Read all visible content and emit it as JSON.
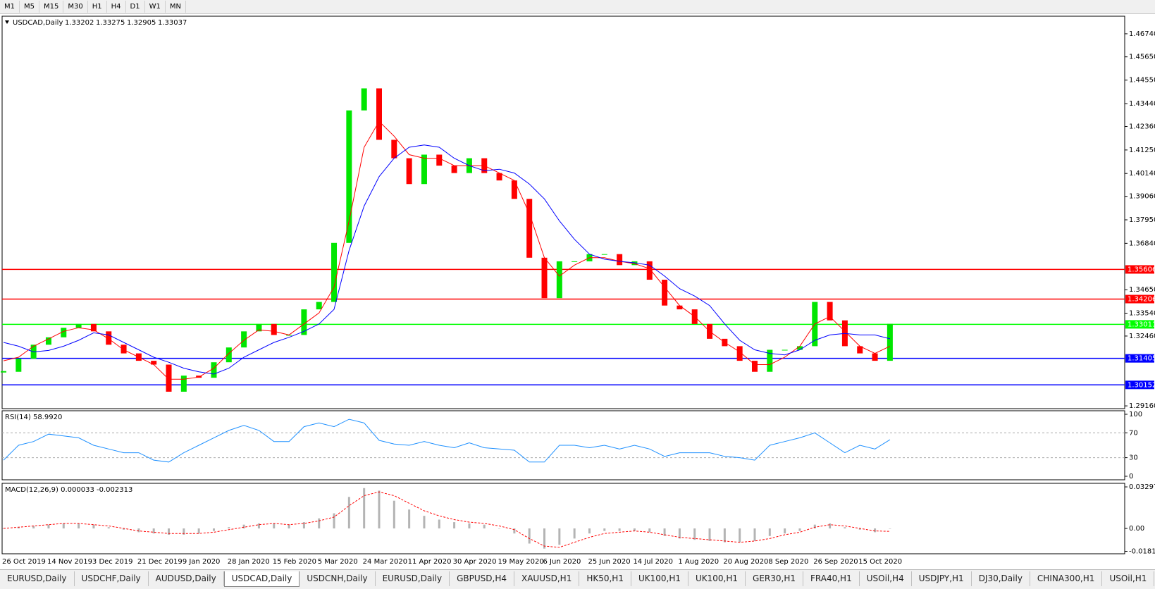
{
  "toolbar": {
    "timeframes": [
      "M1",
      "M5",
      "M15",
      "M30",
      "H1",
      "H4",
      "D1",
      "W1",
      "MN"
    ]
  },
  "tabs": [
    "EURUSD,Daily",
    "USDCHF,Daily",
    "AUDUSD,Daily",
    "USDCAD,Daily",
    "USDCNH,Daily",
    "EURUSD,Daily",
    "GBPUSD,H4",
    "XAUUSD,H1",
    "HK50,H1",
    "UK100,H1",
    "UK100,H1",
    "GER30,H1",
    "FRA40,H1",
    "USOil,H4",
    "USDJPY,H1",
    "DJ30,Daily",
    "CHINA300,H1",
    "USOil,H1"
  ],
  "active_tab": 3,
  "chart_data": [
    {
      "type": "candlestick",
      "title": "USDCAD,Daily",
      "ohlc": [
        1.33202,
        1.33275,
        1.32905,
        1.33037
      ],
      "categories": [
        "26 Oct 2019",
        null,
        null,
        "14 Nov 2019",
        null,
        null,
        "3 Dec 2019",
        null,
        null,
        "21 Dec 2019",
        null,
        null,
        "9 Jan 2020",
        null,
        null,
        "28 Jan 2020",
        null,
        null,
        "15 Feb 2020",
        null,
        null,
        "5 Mar 2020",
        null,
        null,
        "24 Mar 2020",
        null,
        null,
        "11 Apr 2020",
        null,
        null,
        "30 Apr 2020",
        null,
        null,
        "19 May 2020",
        null,
        null,
        "6 Jun 2020",
        null,
        null,
        "25 Jun 2020",
        null,
        null,
        "14 Jul 2020",
        null,
        null,
        "1 Aug 2020",
        null,
        null,
        "20 Aug 2020",
        null,
        null,
        "8 Sep 2020",
        null,
        null,
        "26 Sep 2020",
        null,
        null,
        "15 Oct 2020",
        null,
        null
      ],
      "close": [
        1.3077,
        1.3139,
        1.3205,
        1.324,
        1.3285,
        1.3303,
        1.3268,
        1.3205,
        1.3164,
        1.3129,
        1.3111,
        1.2983,
        1.3059,
        1.3049,
        1.3122,
        1.3192,
        1.3268,
        1.3303,
        1.3251,
        1.3251,
        1.3372,
        1.3407,
        1.3686,
        1.4312,
        1.4416,
        1.4173,
        1.4086,
        1.3964,
        1.4103,
        1.4051,
        1.4016,
        1.4086,
        1.4016,
        1.3981,
        1.3894,
        1.3616,
        1.3425,
        1.3599,
        1.3599,
        1.3633,
        1.3633,
        1.3581,
        1.3599,
        1.3512,
        1.339,
        1.3372,
        1.3303,
        1.3233,
        1.3198,
        1.3129,
        1.3077,
        1.3181,
        1.3181,
        1.3198,
        1.3407,
        1.332,
        1.3198,
        1.3164,
        1.3129,
        1.33037
      ],
      "up_color": "#00e600",
      "down_color": "#ff0000",
      "ma_lines": [
        {
          "color": "#ff0000",
          "values": [
            1.3129,
            1.3146,
            1.3198,
            1.3233,
            1.3268,
            1.3285,
            1.3275,
            1.3233,
            1.3181,
            1.3146,
            1.3111,
            1.3042,
            1.3042,
            1.3052,
            1.3094,
            1.3164,
            1.3226,
            1.3275,
            1.3268,
            1.3251,
            1.3303,
            1.3355,
            1.3477,
            1.379,
            1.4138,
            1.426,
            1.419,
            1.4103,
            1.4086,
            1.4086,
            1.4051,
            1.4051,
            1.4051,
            1.4016,
            1.3981,
            1.3825,
            1.3616,
            1.3529,
            1.3581,
            1.3616,
            1.3616,
            1.3599,
            1.3588,
            1.3564,
            1.3477,
            1.339,
            1.3338,
            1.3268,
            1.3216,
            1.3171,
            1.3111,
            1.3111,
            1.3146,
            1.3198,
            1.3303,
            1.3338,
            1.3268,
            1.3198,
            1.3164,
            1.3198
          ]
        },
        {
          "color": "#0000ff",
          "values": [
            1.3216,
            1.3198,
            1.3171,
            1.3178,
            1.3198,
            1.3226,
            1.3261,
            1.3251,
            1.3216,
            1.3181,
            1.3146,
            1.3122,
            1.3094,
            1.3077,
            1.3066,
            1.3094,
            1.3146,
            1.3181,
            1.3216,
            1.324,
            1.3268,
            1.3303,
            1.3372,
            1.3651,
            1.386,
            1.3999,
            1.4086,
            1.4138,
            1.4149,
            1.4138,
            1.4086,
            1.4051,
            1.4027,
            1.4034,
            1.4016,
            1.3964,
            1.3894,
            1.379,
            1.3703,
            1.3633,
            1.3609,
            1.3599,
            1.3592,
            1.3581,
            1.3529,
            1.347,
            1.3435,
            1.339,
            1.3303,
            1.3226,
            1.3181,
            1.3164,
            1.3157,
            1.3181,
            1.3226,
            1.3251,
            1.3258,
            1.3251,
            1.3251,
            1.3233
          ]
        }
      ],
      "levels": [
        {
          "value": 1.35606,
          "color": "#ff0000"
        },
        {
          "value": 1.34206,
          "color": "#ff0000"
        },
        {
          "value": 1.33011,
          "color": "#00ff00"
        },
        {
          "value": 1.31405,
          "color": "#0000ff"
        },
        {
          "value": 1.30152,
          "color": "#0000ff"
        }
      ],
      "ylim": [
        1.2903,
        1.4757
      ],
      "yticks": [
        {
          "value": 1.2916,
          "label": "1.29160"
        },
        {
          "value": 1.3246,
          "label": "1.32460"
        },
        {
          "value": 1.3354,
          "label": "1.33540"
        },
        {
          "value": 1.3465,
          "label": "1.34650"
        },
        {
          "value": 1.3684,
          "label": "1.36840"
        },
        {
          "value": 1.3795,
          "label": "1.37950"
        },
        {
          "value": 1.3906,
          "label": "1.39060"
        },
        {
          "value": 1.4014,
          "label": "1.40140"
        },
        {
          "value": 1.4125,
          "label": "1.41250"
        },
        {
          "value": 1.4236,
          "label": "1.42360"
        },
        {
          "value": 1.4344,
          "label": "1.43440"
        },
        {
          "value": 1.4455,
          "label": "1.44550"
        },
        {
          "value": 1.4565,
          "label": "1.45650"
        },
        {
          "value": 1.4674,
          "label": "1.46740"
        }
      ]
    },
    {
      "type": "line",
      "title": "RSI(14) 58.9920",
      "color": "#1e90ff",
      "values": [
        26,
        50,
        56,
        68,
        65,
        62,
        50,
        44,
        38,
        38,
        26,
        23,
        38,
        50,
        62,
        74,
        82,
        74,
        56,
        56,
        80,
        86,
        80,
        92,
        86,
        58,
        52,
        50,
        56,
        50,
        46,
        54,
        46,
        44,
        42,
        23,
        23,
        50,
        50,
        46,
        50,
        44,
        50,
        44,
        32,
        38,
        38,
        38,
        32,
        30,
        26,
        50,
        56,
        62,
        70,
        54,
        38,
        50,
        44,
        58.992
      ],
      "levels": [
        70,
        30
      ],
      "ylim": [
        -5.7,
        105.7
      ],
      "yticks": [
        0,
        30,
        70,
        100
      ]
    },
    {
      "type": "macd",
      "title": "MACD(12,26,9) 0.000033 -0.002313",
      "hist_color": "#b4b4b4",
      "signal_color": "#ff0000",
      "histogram": [
        0,
        0.001,
        0.002,
        0.003,
        0.004,
        0.004,
        0.003,
        0.001,
        -0.001,
        -0.003,
        -0.004,
        -0.005,
        -0.005,
        -0.004,
        -0.002,
        0.001,
        0.003,
        0.004,
        0.004,
        0.003,
        0.005,
        0.008,
        0.012,
        0.025,
        0.032,
        0.03,
        0.022,
        0.015,
        0.01,
        0.007,
        0.005,
        0.004,
        0.003,
        0,
        -0.004,
        -0.012,
        -0.016,
        -0.013,
        -0.008,
        -0.004,
        -0.002,
        -0.002,
        -0.002,
        -0.003,
        -0.006,
        -0.008,
        -0.009,
        -0.01,
        -0.011,
        -0.011,
        -0.01,
        -0.006,
        -0.004,
        -0.002,
        0.003,
        0.004,
        0.001,
        -0.001,
        -0.003,
        3.3e-05
      ],
      "signal": [
        0,
        0.001,
        0.002,
        0.003,
        0.004,
        0.004,
        0.003,
        0.002,
        0,
        -0.002,
        -0.003,
        -0.004,
        -0.004,
        -0.004,
        -0.003,
        -0.001,
        0.001,
        0.003,
        0.004,
        0.003,
        0.004,
        0.006,
        0.009,
        0.018,
        0.026,
        0.029,
        0.026,
        0.02,
        0.014,
        0.01,
        0.007,
        0.005,
        0.004,
        0.002,
        -0.001,
        -0.008,
        -0.014,
        -0.015,
        -0.011,
        -0.007,
        -0.004,
        -0.003,
        -0.002,
        -0.003,
        -0.005,
        -0.007,
        -0.008,
        -0.009,
        -0.01,
        -0.011,
        -0.01,
        -0.008,
        -0.005,
        -0.003,
        0.001,
        0.003,
        0.002,
        0,
        -0.002,
        -0.002313
      ],
      "ylim": [
        -0.0201,
        0.0358
      ],
      "yticks": [
        -0.018154,
        {
          "value": 0,
          "label": "0.00"
        },
        0.032972
      ]
    }
  ]
}
